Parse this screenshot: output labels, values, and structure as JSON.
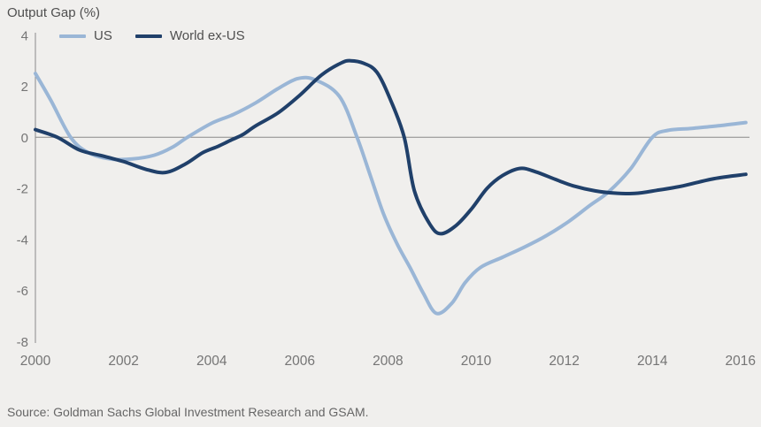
{
  "title": "Output Gap (%)",
  "legend": [
    {
      "label": "US",
      "color": "#9ab6d6"
    },
    {
      "label": "World ex-US",
      "color": "#20406a"
    }
  ],
  "source": "Source: Goldman Sachs Global Investment Research and GSAM.",
  "colors": {
    "background": "#f0efed",
    "axis": "#8a8a8a",
    "tick_text": "#757575",
    "title_text": "#4f4f4f",
    "source_text": "#666666",
    "us_line": "#9ab6d6",
    "world_line": "#20406a"
  },
  "chart_data": {
    "type": "line",
    "title": "Output Gap (%)",
    "ylabel": "Output Gap (%)",
    "xlabel": "",
    "grid": false,
    "legend_position": "top-left",
    "xlim": [
      2000,
      2016.15
    ],
    "ylim": [
      -8,
      4
    ],
    "x_ticks": [
      2000,
      2002,
      2004,
      2006,
      2008,
      2010,
      2012,
      2014,
      2016
    ],
    "y_ticks": [
      4,
      2,
      0,
      -2,
      -4,
      -6,
      -8
    ],
    "zero_line": true,
    "series": [
      {
        "name": "US",
        "color": "#9ab6d6",
        "points": [
          [
            2000.0,
            2.5
          ],
          [
            2000.35,
            1.45
          ],
          [
            2000.8,
            0.0
          ],
          [
            2001.2,
            -0.6
          ],
          [
            2001.7,
            -0.85
          ],
          [
            2002.2,
            -0.85
          ],
          [
            2002.7,
            -0.7
          ],
          [
            2003.1,
            -0.4
          ],
          [
            2003.45,
            0.0
          ],
          [
            2004.0,
            0.55
          ],
          [
            2004.5,
            0.9
          ],
          [
            2005.0,
            1.35
          ],
          [
            2005.5,
            1.9
          ],
          [
            2005.95,
            2.3
          ],
          [
            2006.35,
            2.25
          ],
          [
            2006.9,
            1.6
          ],
          [
            2007.3,
            0.0
          ],
          [
            2007.6,
            -1.5
          ],
          [
            2007.9,
            -3.0
          ],
          [
            2008.2,
            -4.15
          ],
          [
            2008.5,
            -5.1
          ],
          [
            2008.8,
            -6.1
          ],
          [
            2009.1,
            -6.9
          ],
          [
            2009.45,
            -6.5
          ],
          [
            2009.75,
            -5.7
          ],
          [
            2010.1,
            -5.1
          ],
          [
            2010.6,
            -4.7
          ],
          [
            2011.1,
            -4.3
          ],
          [
            2011.6,
            -3.85
          ],
          [
            2012.1,
            -3.3
          ],
          [
            2012.6,
            -2.65
          ],
          [
            2013.0,
            -2.15
          ],
          [
            2013.5,
            -1.25
          ],
          [
            2014.0,
            0.0
          ],
          [
            2014.35,
            0.27
          ],
          [
            2014.9,
            0.35
          ],
          [
            2015.5,
            0.45
          ],
          [
            2016.12,
            0.58
          ]
        ]
      },
      {
        "name": "World ex-US",
        "color": "#20406a",
        "points": [
          [
            2000.0,
            0.3
          ],
          [
            2000.5,
            0.0
          ],
          [
            2001.0,
            -0.5
          ],
          [
            2001.5,
            -0.72
          ],
          [
            2002.0,
            -0.95
          ],
          [
            2002.5,
            -1.25
          ],
          [
            2002.95,
            -1.38
          ],
          [
            2003.4,
            -1.05
          ],
          [
            2003.8,
            -0.6
          ],
          [
            2004.15,
            -0.35
          ],
          [
            2004.45,
            -0.1
          ],
          [
            2004.7,
            0.1
          ],
          [
            2005.0,
            0.45
          ],
          [
            2005.5,
            0.95
          ],
          [
            2006.0,
            1.65
          ],
          [
            2006.5,
            2.45
          ],
          [
            2006.95,
            2.92
          ],
          [
            2007.15,
            3.0
          ],
          [
            2007.45,
            2.9
          ],
          [
            2007.75,
            2.55
          ],
          [
            2008.05,
            1.5
          ],
          [
            2008.37,
            0.0
          ],
          [
            2008.6,
            -2.1
          ],
          [
            2008.95,
            -3.4
          ],
          [
            2009.2,
            -3.78
          ],
          [
            2009.55,
            -3.45
          ],
          [
            2009.9,
            -2.8
          ],
          [
            2010.25,
            -2.0
          ],
          [
            2010.6,
            -1.5
          ],
          [
            2011.0,
            -1.22
          ],
          [
            2011.35,
            -1.35
          ],
          [
            2011.8,
            -1.65
          ],
          [
            2012.2,
            -1.9
          ],
          [
            2012.7,
            -2.1
          ],
          [
            2013.1,
            -2.18
          ],
          [
            2013.6,
            -2.2
          ],
          [
            2014.1,
            -2.08
          ],
          [
            2014.7,
            -1.9
          ],
          [
            2015.4,
            -1.62
          ],
          [
            2016.12,
            -1.45
          ]
        ]
      }
    ]
  }
}
